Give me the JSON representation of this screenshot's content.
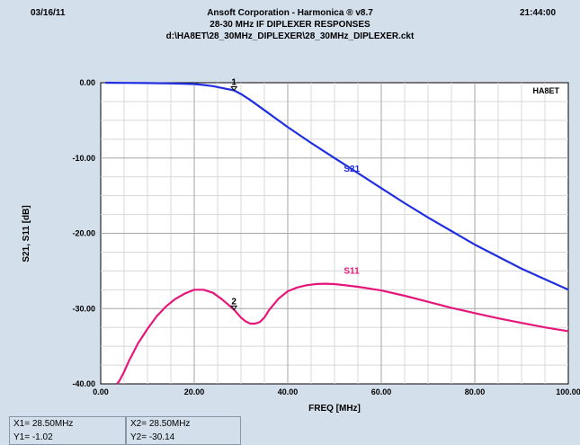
{
  "header": {
    "date": "03/16/11",
    "time": "21:44:00",
    "line1": "Ansoft Corporation - Harmonica ® v8.7",
    "line2": "28-30 MHz IF DIPLEXER RESPONSES",
    "line3": "d:\\HA8ET\\28_30MHz_DIPLEXER\\28_30MHz_DIPLEXER.ckt"
  },
  "chart_data": {
    "type": "line",
    "xlabel": "FREQ [MHz]",
    "ylabel": "S21, S11  [dB]",
    "xlim": [
      0,
      100
    ],
    "ylim": [
      -40,
      0
    ],
    "xticks": [
      0,
      20,
      40,
      60,
      80,
      100
    ],
    "xtick_labels": [
      "0.00",
      "20.00",
      "40.00",
      "60.00",
      "80.00",
      "100.00"
    ],
    "yticks": [
      0,
      -10,
      -20,
      -30,
      -40
    ],
    "ytick_labels": [
      "0.00",
      "-10.00",
      "-20.00",
      "-30.00",
      "-40.00"
    ],
    "grid": true,
    "annotation": "HA8ET",
    "series": [
      {
        "name": "S21",
        "color": "#1f2fe0",
        "x": [
          1,
          5,
          10,
          15,
          20,
          22,
          24,
          26,
          28.5,
          30,
          32,
          34,
          36,
          38,
          40,
          45,
          50,
          55,
          60,
          65,
          70,
          75,
          80,
          85,
          90,
          95,
          100
        ],
        "y": [
          0,
          -0.02,
          -0.05,
          -0.1,
          -0.18,
          -0.3,
          -0.45,
          -0.7,
          -1.02,
          -1.5,
          -2.3,
          -3.2,
          -4.1,
          -5.0,
          -5.9,
          -8.0,
          -10.0,
          -12.0,
          -14.0,
          -16.0,
          -17.9,
          -19.7,
          -21.5,
          -23.1,
          -24.7,
          -26.1,
          -27.5
        ]
      },
      {
        "name": "S11",
        "color": "#e5177a",
        "x": [
          3.5,
          4,
          5,
          6,
          8,
          10,
          12,
          14,
          16,
          18,
          20,
          22,
          24,
          26,
          28.5,
          30,
          31,
          32,
          33,
          34,
          35,
          36,
          38,
          40,
          42,
          44,
          46,
          48,
          50,
          55,
          60,
          65,
          70,
          75,
          80,
          85,
          90,
          95,
          100
        ],
        "y": [
          -40,
          -39.6,
          -38.4,
          -37,
          -34.6,
          -32.7,
          -31.0,
          -29.7,
          -28.7,
          -28.0,
          -27.5,
          -27.5,
          -27.9,
          -28.8,
          -30.14,
          -31.2,
          -31.7,
          -32.0,
          -32.0,
          -31.8,
          -31.2,
          -30.2,
          -28.7,
          -27.7,
          -27.2,
          -26.9,
          -26.75,
          -26.7,
          -26.75,
          -27.1,
          -27.6,
          -28.3,
          -29.1,
          -29.9,
          -30.6,
          -31.3,
          -31.9,
          -32.5,
          -33.0
        ]
      }
    ],
    "markers": [
      {
        "label": "1",
        "x": 28.5,
        "y": -1.02
      },
      {
        "label": "2",
        "x": 28.5,
        "y": -30.14
      }
    ],
    "series_labels": [
      {
        "text": "S21",
        "x": 52,
        "y": -11.8,
        "color": "#1f2fe0"
      },
      {
        "text": "S11",
        "x": 52,
        "y": -25.4,
        "color": "#e5177a"
      }
    ]
  },
  "readouts": {
    "x1": "X1= 28.50MHz",
    "y1": "Y1= -1.02",
    "x2": "X2= 28.50MHz",
    "y2": "Y2= -30.14"
  }
}
